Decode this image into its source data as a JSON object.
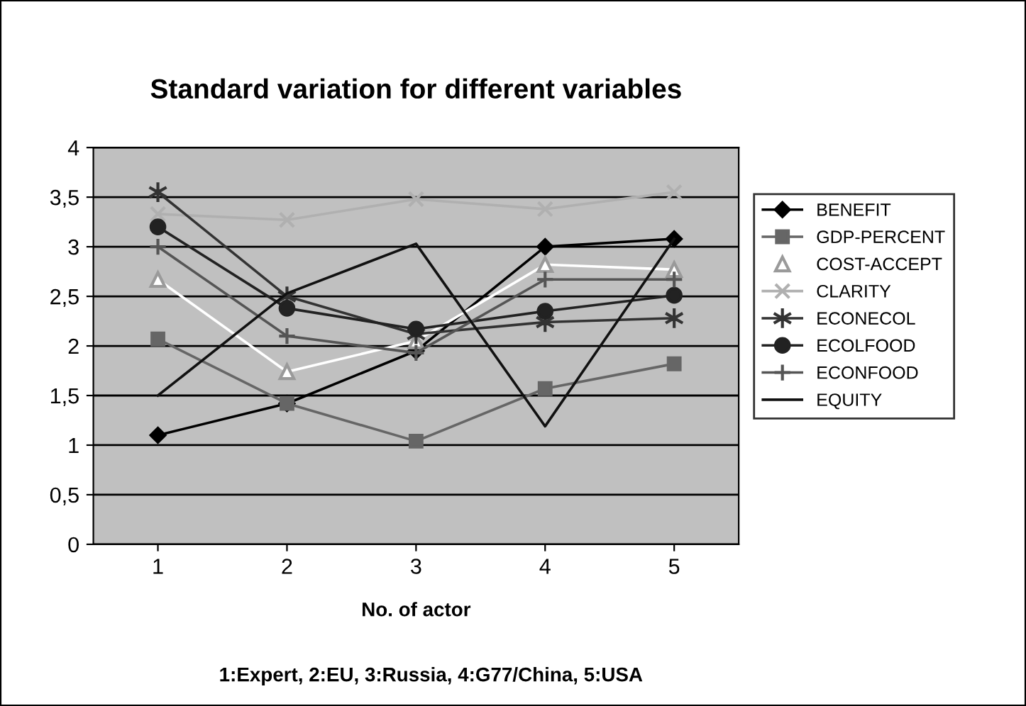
{
  "chart_data": {
    "type": "line",
    "title": "Standard variation for different variables",
    "xlabel": "No. of actor",
    "annotations": [
      "1:Expert, 2:EU, 3:Russia, 4:G77/China, 5:USA"
    ],
    "categories": [
      "1",
      "2",
      "3",
      "4",
      "5"
    ],
    "ylim": [
      0,
      4
    ],
    "yticks": [
      0,
      {
        "value": 0.5,
        "label": "0,5"
      },
      1,
      {
        "value": 1.5,
        "label": "1,5"
      },
      2,
      {
        "value": 2.5,
        "label": "2,5"
      },
      3,
      {
        "value": 3.5,
        "label": "3,5"
      },
      4
    ],
    "grid": "y",
    "legend": "right",
    "series": [
      {
        "name": "BENEFIT",
        "color": "#000000",
        "marker": "diamond",
        "values": [
          1.1,
          1.42,
          1.95,
          3.0,
          3.08
        ]
      },
      {
        "name": "GDP-PERCENT",
        "color": "#666666",
        "marker": "square",
        "values": [
          2.07,
          1.42,
          1.04,
          1.57,
          1.82
        ]
      },
      {
        "name": "COST-ACCEPT",
        "color": "#ffffff",
        "marker": "triangle",
        "values": [
          2.67,
          1.74,
          2.05,
          2.82,
          2.77
        ]
      },
      {
        "name": "CLARITY",
        "color": "#b0b0b0",
        "marker": "x",
        "values": [
          3.33,
          3.27,
          3.48,
          3.38,
          3.55
        ]
      },
      {
        "name": "ECONECOL",
        "color": "#333333",
        "marker": "cross",
        "values": [
          3.55,
          2.5,
          2.12,
          2.24,
          2.28
        ]
      },
      {
        "name": "ECOLFOOD",
        "color": "#222222",
        "marker": "circle",
        "values": [
          3.2,
          2.38,
          2.17,
          2.35,
          2.51
        ]
      },
      {
        "name": "ECONFOOD",
        "color": "#555555",
        "marker": "plus",
        "values": [
          3.0,
          2.1,
          1.93,
          2.67,
          2.67
        ]
      },
      {
        "name": "EQUITY",
        "color": "#111111",
        "marker": "none",
        "values": [
          1.5,
          2.53,
          3.03,
          1.19,
          3.08
        ]
      }
    ]
  }
}
